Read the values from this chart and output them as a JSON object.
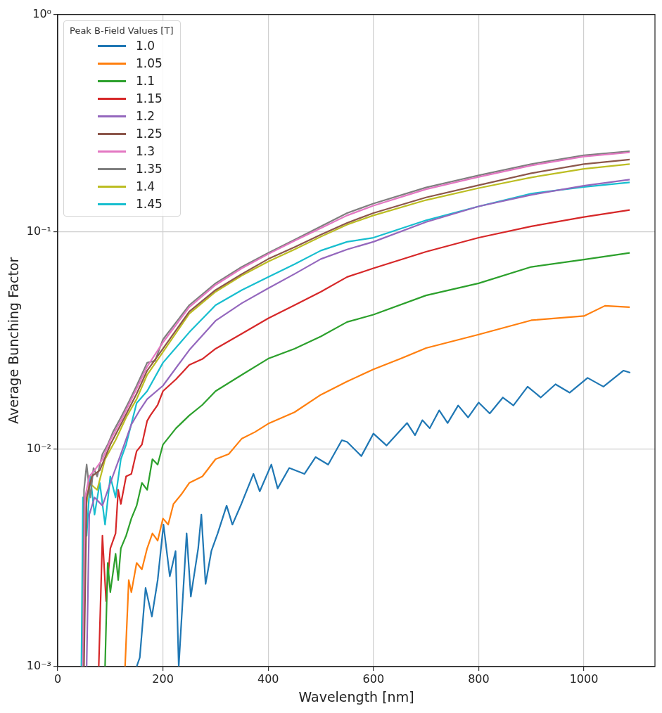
{
  "chart_data": {
    "type": "line",
    "xlabel": "Wavelength [nm]",
    "ylabel": "Average Bunching Factor",
    "legend_title": "Peak B-Field Values [T]",
    "legend": "top left",
    "grid": true,
    "log": "y",
    "marker": "none",
    "line_style": "solid",
    "xlim": [
      0,
      1135
    ],
    "xticks": [
      0,
      200,
      400,
      600,
      800,
      1000
    ],
    "ylim": [
      0.001,
      1
    ],
    "yticks": [
      {
        "value": 1,
        "label": "10⁰"
      },
      {
        "value": 0.1,
        "label": "10⁻¹"
      },
      {
        "value": 0.01,
        "label": "10⁻²"
      },
      {
        "value": 0.001,
        "label": "10⁻³"
      }
    ],
    "series": [
      {
        "name": "1.0",
        "color": "#1f77b4",
        "x": [
          150,
          156,
          167,
          179,
          190,
          201,
          213,
          224,
          230,
          245,
          253,
          267,
          273,
          281,
          292,
          304,
          321,
          332,
          349,
          372,
          384,
          406,
          418,
          440,
          469,
          490,
          514,
          540,
          550,
          577,
          600,
          625,
          664,
          679,
          693,
          707,
          725,
          741,
          761,
          780,
          800,
          821,
          846,
          866,
          893,
          918,
          946,
          973,
          1007,
          1037,
          1075,
          1088
        ],
        "values": [
          0.001,
          0.0011,
          0.0023,
          0.0017,
          0.0025,
          0.0045,
          0.0026,
          0.0034,
          0.001,
          0.0041,
          0.0021,
          0.0035,
          0.005,
          0.0024,
          0.0034,
          0.0041,
          0.0055,
          0.0045,
          0.0056,
          0.0077,
          0.0064,
          0.0085,
          0.0066,
          0.0082,
          0.0077,
          0.0092,
          0.0085,
          0.011,
          0.0108,
          0.0093,
          0.0118,
          0.0104,
          0.0132,
          0.0116,
          0.0136,
          0.0125,
          0.0151,
          0.0132,
          0.0159,
          0.014,
          0.0164,
          0.0146,
          0.0173,
          0.0159,
          0.0194,
          0.0173,
          0.0199,
          0.0182,
          0.0213,
          0.0194,
          0.023,
          0.0225
        ]
      },
      {
        "name": "1.05",
        "color": "#ff7f0e",
        "x": [
          128,
          135,
          140,
          150,
          160,
          170,
          180,
          190,
          200,
          210,
          220,
          235,
          250,
          275,
          300,
          325,
          350,
          375,
          400,
          450,
          500,
          550,
          600,
          650,
          700,
          800,
          900,
          1000,
          1040,
          1087
        ],
        "values": [
          0.001,
          0.0025,
          0.0022,
          0.003,
          0.0028,
          0.0035,
          0.0041,
          0.0038,
          0.0048,
          0.0045,
          0.0056,
          0.0062,
          0.007,
          0.0075,
          0.009,
          0.0095,
          0.0112,
          0.012,
          0.0131,
          0.0148,
          0.0178,
          0.0205,
          0.0233,
          0.026,
          0.0292,
          0.0337,
          0.0392,
          0.041,
          0.0457,
          0.045
        ]
      },
      {
        "name": "1.1",
        "color": "#2ca02c",
        "x": [
          90,
          95,
          100,
          110,
          115,
          120,
          130,
          140,
          150,
          160,
          170,
          180,
          190,
          200,
          225,
          250,
          275,
          300,
          350,
          400,
          450,
          500,
          550,
          600,
          700,
          800,
          900,
          1000,
          1087
        ],
        "values": [
          0.001,
          0.003,
          0.0022,
          0.0033,
          0.0025,
          0.0035,
          0.004,
          0.0048,
          0.0055,
          0.007,
          0.0065,
          0.009,
          0.0085,
          0.0105,
          0.0125,
          0.0143,
          0.016,
          0.0185,
          0.022,
          0.0261,
          0.029,
          0.033,
          0.0385,
          0.0416,
          0.051,
          0.058,
          0.069,
          0.0746,
          0.08
        ]
      },
      {
        "name": "1.15",
        "color": "#d62728",
        "x": [
          78,
          85,
          92,
          100,
          110,
          115,
          120,
          130,
          140,
          150,
          160,
          170,
          176,
          190,
          200,
          225,
          250,
          275,
          300,
          350,
          400,
          450,
          500,
          550,
          600,
          700,
          800,
          900,
          1000,
          1087
        ],
        "values": [
          0.001,
          0.004,
          0.002,
          0.0035,
          0.0041,
          0.0065,
          0.0056,
          0.0075,
          0.0077,
          0.0098,
          0.0105,
          0.0135,
          0.0143,
          0.016,
          0.0185,
          0.021,
          0.0244,
          0.026,
          0.029,
          0.034,
          0.04,
          0.046,
          0.053,
          0.062,
          0.068,
          0.081,
          0.094,
          0.106,
          0.117,
          0.126
        ]
      },
      {
        "name": "1.2",
        "color": "#9467bd",
        "x": [
          55,
          60,
          70,
          85,
          100,
          120,
          140,
          155,
          170,
          200,
          250,
          300,
          350,
          400,
          450,
          500,
          550,
          600,
          700,
          800,
          900,
          1000,
          1087
        ],
        "values": [
          0.001,
          0.005,
          0.006,
          0.0055,
          0.007,
          0.0095,
          0.013,
          0.015,
          0.017,
          0.0196,
          0.0286,
          0.039,
          0.047,
          0.055,
          0.064,
          0.075,
          0.083,
          0.09,
          0.111,
          0.131,
          0.148,
          0.163,
          0.174
        ]
      },
      {
        "name": "1.25",
        "color": "#8c564b",
        "x": [
          50,
          55,
          65,
          80,
          100,
          120,
          150,
          170,
          200,
          250,
          300,
          350,
          400,
          450,
          500,
          550,
          600,
          700,
          800,
          900,
          1000,
          1087
        ],
        "values": [
          0.001,
          0.006,
          0.0075,
          0.008,
          0.0105,
          0.013,
          0.018,
          0.023,
          0.029,
          0.043,
          0.054,
          0.064,
          0.075,
          0.085,
          0.097,
          0.11,
          0.122,
          0.144,
          0.164,
          0.186,
          0.205,
          0.215
        ]
      },
      {
        "name": "1.3",
        "color": "#e377c2",
        "x": [
          48,
          52,
          60,
          70,
          85,
          100,
          120,
          150,
          170,
          200,
          250,
          300,
          350,
          400,
          450,
          500,
          550,
          600,
          700,
          800,
          900,
          1000,
          1087
        ],
        "values": [
          0.001,
          0.006,
          0.0075,
          0.008,
          0.009,
          0.011,
          0.0135,
          0.019,
          0.024,
          0.031,
          0.045,
          0.057,
          0.068,
          0.079,
          0.091,
          0.104,
          0.119,
          0.132,
          0.157,
          0.179,
          0.202,
          0.222,
          0.232
        ]
      },
      {
        "name": "1.35",
        "color": "#7f7f7f",
        "x": [
          48,
          50,
          55,
          62,
          68,
          75,
          85,
          95,
          105,
          120,
          135,
          150,
          170,
          185,
          200,
          250,
          300,
          350,
          400,
          450,
          500,
          550,
          600,
          700,
          800,
          900,
          1000,
          1087
        ],
        "values": [
          0.001,
          0.0065,
          0.0085,
          0.006,
          0.0082,
          0.0075,
          0.0095,
          0.0105,
          0.012,
          0.014,
          0.0165,
          0.0196,
          0.025,
          0.0255,
          0.032,
          0.046,
          0.058,
          0.069,
          0.08,
          0.092,
          0.106,
          0.122,
          0.135,
          0.16,
          0.182,
          0.205,
          0.225,
          0.235
        ]
      },
      {
        "name": "1.4",
        "color": "#bcbd22",
        "x": [
          48,
          52,
          60,
          75,
          90,
          110,
          130,
          150,
          170,
          200,
          250,
          300,
          350,
          400,
          450,
          500,
          550,
          600,
          700,
          800,
          900,
          1000,
          1087
        ],
        "values": [
          0.001,
          0.005,
          0.007,
          0.0065,
          0.009,
          0.011,
          0.014,
          0.017,
          0.022,
          0.028,
          0.042,
          0.053,
          0.063,
          0.073,
          0.083,
          0.095,
          0.108,
          0.119,
          0.14,
          0.159,
          0.178,
          0.195,
          0.205
        ]
      },
      {
        "name": "1.45",
        "color": "#17becf",
        "x": [
          45,
          48,
          55,
          62,
          70,
          80,
          90,
          100,
          110,
          120,
          130,
          150,
          170,
          200,
          250,
          300,
          350,
          400,
          450,
          500,
          550,
          600,
          700,
          800,
          900,
          1000,
          1087
        ],
        "values": [
          0.001,
          0.006,
          0.004,
          0.0075,
          0.005,
          0.007,
          0.0045,
          0.0075,
          0.006,
          0.009,
          0.0105,
          0.0163,
          0.0185,
          0.025,
          0.0345,
          0.046,
          0.054,
          0.062,
          0.071,
          0.082,
          0.09,
          0.094,
          0.113,
          0.131,
          0.15,
          0.161,
          0.169
        ]
      }
    ]
  }
}
